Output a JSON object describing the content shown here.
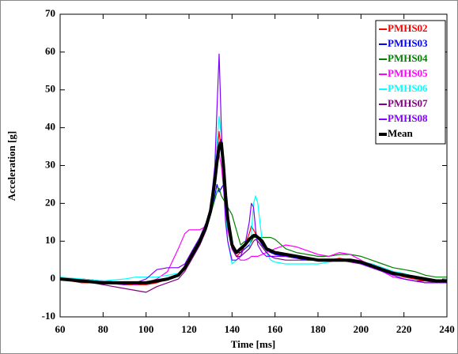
{
  "chart_data": {
    "type": "line",
    "xlabel": "Time [ms]",
    "ylabel": "Acceleration [g]",
    "x": [
      60,
      70,
      80,
      90,
      95,
      100,
      105,
      110,
      115,
      118,
      120,
      122,
      125,
      128,
      130,
      132,
      133,
      134,
      135,
      136,
      137,
      138,
      140,
      142,
      144,
      146,
      148,
      149,
      150,
      151,
      152,
      154,
      156,
      158,
      160,
      165,
      170,
      175,
      180,
      185,
      190,
      195,
      200,
      205,
      210,
      215,
      220,
      225,
      230,
      235,
      240
    ],
    "series": [
      {
        "name": "PMHS02",
        "color": "#ff0000",
        "values": [
          0,
          -1,
          -1,
          -1.5,
          -1.5,
          -1.5,
          -1,
          0,
          1,
          3,
          5,
          7,
          10,
          14,
          18,
          27,
          33,
          39,
          34,
          27,
          20,
          14,
          8,
          6,
          7,
          9,
          12,
          14,
          13,
          12,
          11,
          9,
          8,
          7,
          6.5,
          6,
          5.5,
          5,
          5,
          5,
          5.5,
          5,
          4.5,
          3.5,
          2.5,
          1.5,
          0.5,
          0,
          -0.5,
          -0.5,
          -1
        ]
      },
      {
        "name": "PMHS03",
        "color": "#0000ff",
        "values": [
          0,
          0,
          -0.5,
          -1,
          -1,
          -1,
          -0.5,
          0,
          1,
          2.5,
          4,
          6,
          9,
          13,
          17,
          22,
          25,
          23,
          24,
          25,
          22,
          15,
          8,
          7,
          7,
          8,
          9,
          10,
          11,
          12,
          11,
          9,
          7.5,
          7,
          6.5,
          6,
          5.5,
          5,
          5,
          5,
          5,
          5,
          4.5,
          4,
          3,
          2,
          1,
          0.5,
          0,
          -0.5,
          -0.5
        ]
      },
      {
        "name": "PMHS04",
        "color": "#008000",
        "values": [
          0,
          -0.5,
          -1,
          -1,
          -1,
          -1,
          -0.5,
          0,
          1,
          2.5,
          4,
          6,
          9,
          13,
          17,
          21,
          23,
          24,
          22,
          21,
          20,
          19,
          17,
          13,
          9,
          10,
          10,
          10,
          11,
          11,
          11,
          11,
          11,
          11,
          10.5,
          8,
          7,
          6.5,
          6,
          6,
          6.5,
          6.5,
          6,
          5,
          4,
          3,
          2.5,
          2,
          1,
          0.5,
          0.5
        ]
      },
      {
        "name": "PMHS05",
        "color": "#ff00ff",
        "values": [
          0,
          0,
          -0.5,
          -1,
          -1.5,
          -1,
          0,
          2,
          8,
          12,
          13,
          13,
          13,
          14,
          17,
          24,
          30,
          33,
          30,
          24,
          18,
          13,
          8,
          6,
          5,
          5,
          5.5,
          6,
          6,
          6,
          6,
          6.5,
          7,
          7.5,
          8,
          9,
          8.5,
          7.5,
          6.5,
          6,
          7,
          6.5,
          5,
          3.5,
          2,
          0.5,
          0,
          -0.5,
          -1,
          -1,
          -1
        ]
      },
      {
        "name": "PMHS06",
        "color": "#00ffff",
        "values": [
          0.5,
          0,
          -0.5,
          0,
          0.5,
          0.5,
          0.5,
          1,
          1.5,
          3,
          5,
          7,
          10,
          14,
          18,
          28,
          36,
          43,
          38,
          28,
          18,
          10,
          4,
          5,
          6,
          7,
          8,
          12,
          20,
          22,
          20,
          10,
          7,
          5,
          4.5,
          4,
          4,
          4,
          4,
          4.5,
          5,
          5,
          4.5,
          4,
          3,
          2,
          1.5,
          0.5,
          0,
          -0.5,
          0
        ]
      },
      {
        "name": "PMHS07",
        "color": "#800080",
        "values": [
          0,
          -0.5,
          -1.5,
          -2.5,
          -3,
          -3.5,
          -2,
          -1,
          0,
          2,
          4,
          6,
          9,
          13,
          18,
          27,
          32,
          36,
          37,
          30,
          22,
          15,
          8,
          6,
          6,
          7,
          8,
          9,
          10,
          10.5,
          10,
          8.5,
          7,
          6,
          5.5,
          5,
          5,
          5,
          5,
          5,
          5,
          4.5,
          4,
          3,
          2,
          1,
          0,
          -0.5,
          -0.5,
          -1,
          -1
        ]
      },
      {
        "name": "PMHS08",
        "color": "#8000ff",
        "values": [
          0,
          -0.5,
          -1,
          -1.5,
          -1,
          0,
          2.5,
          3,
          3,
          4,
          6,
          8,
          11,
          15,
          19,
          30,
          45,
          59.5,
          40,
          25,
          15,
          10,
          5,
          5,
          6,
          9,
          15,
          20,
          19,
          13,
          9,
          7,
          6,
          6,
          6,
          6,
          6,
          5.5,
          5,
          5,
          5,
          5,
          4,
          3,
          2,
          1,
          0,
          -0.5,
          -1,
          -1,
          -1
        ]
      },
      {
        "name": "Mean",
        "color": "#000000",
        "width": 4,
        "values": [
          0,
          -0.5,
          -1,
          -1,
          -1,
          -1,
          -0.5,
          0,
          1,
          3,
          5,
          7,
          10,
          14,
          18,
          26,
          31,
          35,
          36,
          30,
          22,
          16,
          9,
          7,
          8,
          9,
          10.5,
          11,
          11.5,
          11.5,
          11,
          10,
          8,
          7.5,
          7,
          6.5,
          6,
          5.5,
          5,
          5,
          5,
          5,
          4.5,
          3.5,
          2.5,
          1.5,
          1,
          0.5,
          0,
          -0.5,
          -0.5
        ]
      }
    ],
    "xlim": [
      60,
      240
    ],
    "xticks": [
      60,
      80,
      100,
      120,
      140,
      160,
      180,
      200,
      220,
      240
    ],
    "ylim": [
      -10,
      70
    ],
    "yticks": [
      -10,
      0,
      10,
      20,
      30,
      40,
      50,
      60,
      70
    ],
    "legend": "upper-right",
    "grid": false
  }
}
